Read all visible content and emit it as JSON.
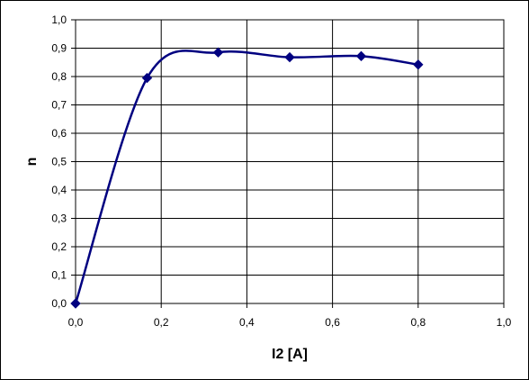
{
  "chart_data": {
    "type": "line",
    "title": "",
    "xlabel": "I2 [A]",
    "ylabel": "n",
    "xlim": [
      0,
      1
    ],
    "ylim": [
      0,
      1
    ],
    "x_ticks": [
      "0,0",
      "0,2",
      "0,4",
      "0,6",
      "0,8",
      "1,0"
    ],
    "y_ticks": [
      "0,0",
      "0,1",
      "0,2",
      "0,3",
      "0,4",
      "0,5",
      "0,6",
      "0,7",
      "0,8",
      "0,9",
      "1,0"
    ],
    "grid": true,
    "legend": "none",
    "series": [
      {
        "color": "#000080",
        "marker": "diamond",
        "smooth": true,
        "points": [
          {
            "x": 0.0,
            "y": 0.0
          },
          {
            "x": 0.167,
            "y": 0.795
          },
          {
            "x": 0.333,
            "y": 0.885
          },
          {
            "x": 0.5,
            "y": 0.868
          },
          {
            "x": 0.667,
            "y": 0.872
          },
          {
            "x": 0.8,
            "y": 0.842
          }
        ]
      }
    ]
  }
}
